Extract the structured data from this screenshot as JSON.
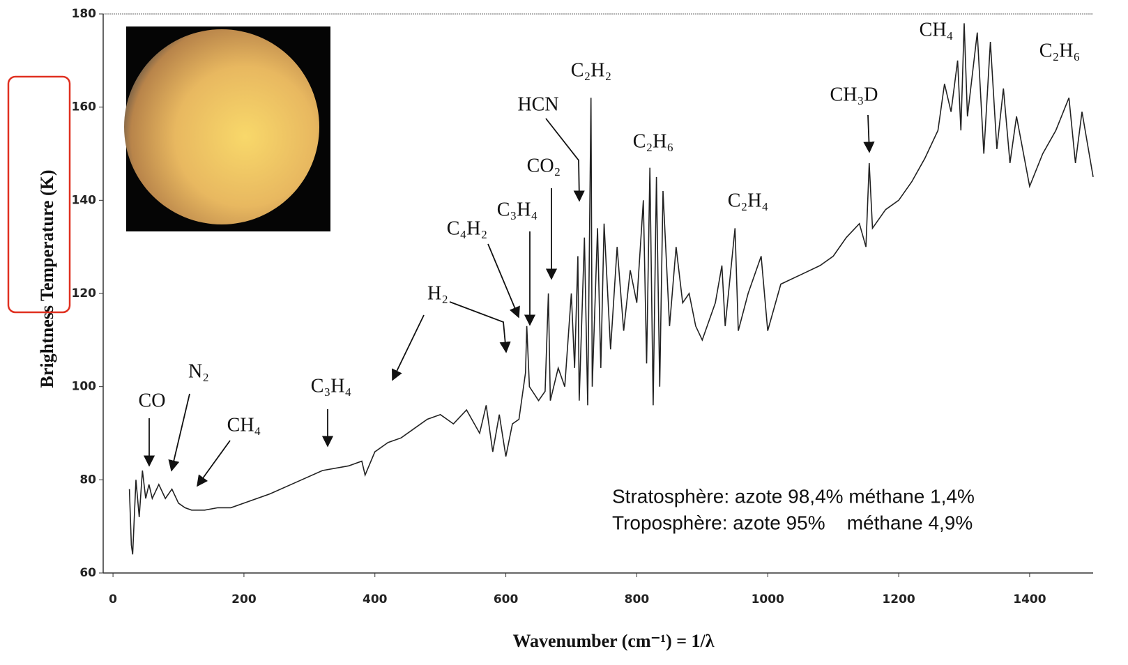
{
  "chart_data": {
    "type": "line",
    "y_label": "Brightness Temperature (K)",
    "x_label": "Wavenumber (cm⁻¹) = 1/λ",
    "color": "#222222",
    "xlim": [
      -15,
      1497
    ],
    "xticks": [
      0,
      200,
      400,
      600,
      800,
      1000,
      1200,
      1400
    ],
    "ylim": [
      60,
      180
    ],
    "yticks": [
      60,
      80,
      100,
      120,
      140,
      160,
      180
    ],
    "x": [
      25,
      28,
      30,
      35,
      40,
      45,
      50,
      55,
      60,
      70,
      80,
      90,
      100,
      110,
      120,
      140,
      160,
      180,
      200,
      240,
      280,
      320,
      360,
      380,
      385,
      400,
      420,
      440,
      460,
      480,
      500,
      520,
      540,
      560,
      570,
      580,
      590,
      600,
      610,
      620,
      630,
      632,
      636,
      650,
      660,
      665,
      668,
      680,
      690,
      700,
      705,
      710,
      712,
      720,
      725,
      730,
      732,
      740,
      745,
      750,
      760,
      770,
      780,
      790,
      800,
      810,
      815,
      820,
      825,
      830,
      835,
      840,
      850,
      860,
      870,
      880,
      890,
      900,
      920,
      930,
      935,
      950,
      955,
      970,
      990,
      1000,
      1020,
      1050,
      1080,
      1100,
      1120,
      1140,
      1150,
      1155,
      1160,
      1180,
      1200,
      1220,
      1240,
      1260,
      1270,
      1280,
      1290,
      1295,
      1300,
      1305,
      1320,
      1330,
      1340,
      1350,
      1360,
      1370,
      1380,
      1400,
      1420,
      1440,
      1460,
      1470,
      1480,
      1497
    ],
    "values": [
      78,
      66,
      64,
      80,
      72,
      82,
      76,
      79,
      76,
      79,
      76,
      78,
      75,
      74,
      73.5,
      73.5,
      74,
      74,
      75,
      77,
      79.5,
      82,
      83,
      84,
      81,
      86,
      88,
      89,
      91,
      93,
      94,
      92,
      95,
      90,
      96,
      86,
      94,
      85,
      92,
      93,
      103,
      113,
      100,
      97,
      99,
      120,
      97,
      104,
      100,
      120,
      104,
      128,
      97,
      132,
      96,
      162,
      100,
      134,
      104,
      135,
      108,
      130,
      112,
      125,
      118,
      140,
      105,
      147,
      96,
      145,
      100,
      142,
      113,
      130,
      118,
      120,
      113,
      110,
      118,
      126,
      113,
      134,
      112,
      120,
      128,
      112,
      122,
      124,
      126,
      128,
      132,
      135,
      130,
      148,
      134,
      138,
      140,
      144,
      149,
      155,
      165,
      159,
      170,
      155,
      178,
      158,
      176,
      150,
      174,
      151,
      164,
      148,
      158,
      143,
      150,
      155,
      162,
      148,
      159,
      145
    ],
    "annotations": [
      "CO",
      "N₂",
      "CH₄",
      "C₃H₄",
      "H₂",
      "C₄H₂",
      "C₃H₄",
      "CO₂",
      "HCN",
      "C₂H₂",
      "C₂H₆",
      "C₂H₄",
      "CH₃D",
      "CH₄",
      "C₂H₆"
    ],
    "notes": [
      "Stratosphère: azote 98,4% méthane 1,4%",
      "Troposphère: azote 95%    méthane 4,9%"
    ]
  }
}
